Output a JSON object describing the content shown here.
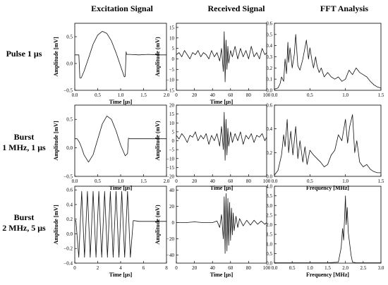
{
  "column_titles": [
    "Excitation Signal",
    "Received Signal",
    "FFT Analysis"
  ],
  "row_labels": [
    [
      "Pulse 1 μs"
    ],
    [
      "Burst",
      "1 MHz, 1 μs"
    ],
    [
      "Burst",
      "2 MHz, 5 μs"
    ]
  ],
  "chart_data": [
    {
      "type": "line",
      "row": 0,
      "col": 0,
      "xlabel": "Time [μs]",
      "ylabel": "Amplitude [mV]",
      "xlim": [
        0,
        2.0
      ],
      "ylim": [
        -0.5,
        0.75
      ],
      "xticks": [
        0,
        0.5,
        1.0,
        1.5,
        2.0
      ],
      "xtick_labels": [
        "0.0",
        "0.5",
        "1.0",
        "1.5",
        "2.0"
      ],
      "yticks": [
        -0.5,
        0.0,
        0.5
      ],
      "ytick_labels": [
        "−0.5",
        "0.0",
        "0.5"
      ],
      "series": [
        {
          "x": [
            0,
            0.09,
            0.1,
            0.11,
            0.14,
            0.2,
            0.3,
            0.4,
            0.5,
            0.6,
            0.7,
            0.8,
            0.9,
            1.0,
            1.08,
            1.1,
            1.12,
            1.13,
            1.2,
            1.4,
            1.6,
            1.8,
            2.0
          ],
          "y": [
            0.16,
            0.16,
            -0.05,
            -0.27,
            -0.27,
            -0.15,
            0.1,
            0.36,
            0.53,
            0.6,
            0.56,
            0.42,
            0.2,
            -0.05,
            -0.25,
            -0.24,
            0.22,
            0.17,
            0.17,
            0.16,
            0.17,
            0.16,
            0.16
          ]
        }
      ]
    },
    {
      "type": "line",
      "row": 0,
      "col": 1,
      "xlabel": "Time [μs]",
      "ylabel": "Amplitude (mV)",
      "xlim": [
        0,
        100
      ],
      "ylim": [
        -15,
        17
      ],
      "xticks": [
        0,
        20,
        40,
        60,
        80,
        100
      ],
      "xtick_labels": [
        "0",
        "20",
        "40",
        "60",
        "80",
        "100"
      ],
      "yticks": [
        -15,
        -10,
        -5,
        0,
        5,
        10,
        15
      ],
      "ytick_labels": [
        "−15",
        "−10",
        "−5",
        "0",
        "5",
        "10",
        "15"
      ],
      "series": [
        {
          "x": [
            0,
            3,
            6,
            9,
            12,
            15,
            18,
            21,
            24,
            27,
            30,
            33,
            36,
            39,
            42,
            45,
            48,
            50,
            52,
            53,
            54,
            55,
            56,
            57,
            58,
            60,
            62,
            65,
            68,
            71,
            74,
            77,
            80,
            83,
            86,
            89,
            92,
            95,
            98,
            100
          ],
          "y": [
            2,
            3,
            1,
            4,
            2,
            0,
            3,
            2,
            4,
            1,
            3,
            2,
            0,
            4,
            1,
            3,
            -1,
            5,
            -6,
            13,
            -11,
            9,
            -5,
            6,
            -2,
            4,
            1,
            6,
            0,
            5,
            1,
            4,
            0,
            6,
            1,
            3,
            0,
            5,
            2,
            3
          ]
        }
      ]
    },
    {
      "type": "line",
      "row": 0,
      "col": 2,
      "xlabel": "",
      "ylabel": "",
      "xlim": [
        0,
        1.5
      ],
      "ylim": [
        0,
        0.6
      ],
      "xticks": [
        0,
        0.5,
        1.0,
        1.5
      ],
      "xtick_labels": [
        "0.0",
        "0.5",
        "1.0",
        "1.5"
      ],
      "yticks": [
        0,
        0.1,
        0.2,
        0.3,
        0.4,
        0.5,
        0.6
      ],
      "ytick_labels": [
        "0.0",
        "0.1",
        "0.2",
        "0.3",
        "0.4",
        "0.5",
        "0.6"
      ],
      "series": [
        {
          "x": [
            0,
            0.05,
            0.08,
            0.1,
            0.13,
            0.15,
            0.17,
            0.19,
            0.2,
            0.22,
            0.25,
            0.28,
            0.3,
            0.33,
            0.36,
            0.4,
            0.45,
            0.48,
            0.5,
            0.53,
            0.55,
            0.58,
            0.6,
            0.63,
            0.66,
            0.7,
            0.75,
            0.8,
            0.85,
            0.9,
            0.95,
            1.0,
            1.05,
            1.1,
            1.15,
            1.2,
            1.25,
            1.3,
            1.35,
            1.4,
            1.45,
            1.5
          ],
          "y": [
            0.01,
            0.02,
            0.06,
            0.12,
            0.08,
            0.28,
            0.15,
            0.43,
            0.25,
            0.38,
            0.2,
            0.32,
            0.5,
            0.22,
            0.18,
            0.28,
            0.45,
            0.28,
            0.38,
            0.26,
            0.2,
            0.3,
            0.22,
            0.16,
            0.2,
            0.12,
            0.16,
            0.12,
            0.1,
            0.12,
            0.08,
            0.1,
            0.18,
            0.14,
            0.2,
            0.16,
            0.14,
            0.12,
            0.08,
            0.05,
            0.03,
            0.02
          ]
        }
      ]
    },
    {
      "type": "line",
      "row": 1,
      "col": 0,
      "xlabel": "Time [μs]",
      "ylabel": "Amplitude [mV]",
      "xlim": [
        0,
        2.0
      ],
      "ylim": [
        -0.5,
        0.75
      ],
      "xticks": [
        0,
        0.5,
        1.0,
        1.5,
        2.0
      ],
      "xtick_labels": [
        "0.0",
        "0.5",
        "1.0",
        "1.5",
        "2.0"
      ],
      "yticks": [
        -0.5,
        0.0,
        0.5
      ],
      "ytick_labels": [
        "−0.5",
        "0.0",
        "0.5"
      ],
      "series": [
        {
          "x": [
            0,
            0.05,
            0.1,
            0.15,
            0.2,
            0.3,
            0.4,
            0.5,
            0.6,
            0.7,
            0.8,
            0.9,
            1.0,
            1.1,
            1.15,
            1.17,
            1.2,
            1.4,
            1.6,
            1.8,
            2.0
          ],
          "y": [
            0.16,
            0.16,
            0.1,
            0.0,
            -0.12,
            -0.25,
            -0.12,
            0.15,
            0.42,
            0.56,
            0.5,
            0.3,
            0.05,
            -0.14,
            -0.1,
            0.17,
            0.16,
            0.16,
            0.16,
            0.16,
            0.16
          ]
        }
      ]
    },
    {
      "type": "line",
      "row": 1,
      "col": 1,
      "xlabel": "Time [μs]",
      "ylabel": "Amplitude (mV)",
      "xlim": [
        0,
        100
      ],
      "ylim": [
        -20,
        20
      ],
      "xticks": [
        0,
        20,
        40,
        60,
        80,
        100
      ],
      "xtick_labels": [
        "0",
        "20",
        "40",
        "60",
        "80",
        "100"
      ],
      "yticks": [
        -20,
        -15,
        -10,
        -5,
        0,
        5,
        10,
        15,
        20
      ],
      "ytick_labels": [
        "−20",
        "−15",
        "−10",
        "−5",
        "0",
        "5",
        "10",
        "15",
        "20"
      ],
      "series": [
        {
          "x": [
            0,
            3,
            6,
            9,
            12,
            15,
            18,
            21,
            24,
            27,
            30,
            33,
            36,
            39,
            42,
            45,
            48,
            50,
            52,
            53,
            54,
            55,
            56,
            57,
            58,
            60,
            62,
            65,
            68,
            71,
            74,
            77,
            80,
            83,
            86,
            89,
            92,
            95,
            98,
            100
          ],
          "y": [
            3,
            1,
            4,
            2,
            -1,
            3,
            2,
            5,
            0,
            3,
            1,
            4,
            -2,
            3,
            0,
            4,
            -3,
            8,
            -5,
            16,
            -11,
            12,
            -8,
            7,
            -3,
            5,
            -1,
            4,
            0,
            5,
            -2,
            3,
            1,
            4,
            -1,
            3,
            2,
            4,
            0,
            2
          ]
        }
      ]
    },
    {
      "type": "line",
      "row": 1,
      "col": 2,
      "xlabel": "Frequency [MHz]",
      "ylabel": "",
      "xlim": [
        0,
        1.5
      ],
      "ylim": [
        0,
        0.6
      ],
      "xticks": [
        0,
        0.5,
        1.0,
        1.5
      ],
      "xtick_labels": [
        "0.0",
        "0.5",
        "1.0",
        "1.5"
      ],
      "yticks": [
        0,
        0.2,
        0.4,
        0.6
      ],
      "ytick_labels": [
        "0.0",
        "0.2",
        "0.4",
        "0.6"
      ],
      "series": [
        {
          "x": [
            0,
            0.05,
            0.1,
            0.13,
            0.15,
            0.18,
            0.2,
            0.23,
            0.26,
            0.3,
            0.33,
            0.36,
            0.4,
            0.43,
            0.46,
            0.5,
            0.55,
            0.6,
            0.65,
            0.7,
            0.75,
            0.8,
            0.85,
            0.9,
            0.95,
            1.0,
            1.03,
            1.06,
            1.1,
            1.13,
            1.16,
            1.2,
            1.25,
            1.3,
            1.35,
            1.4,
            1.45,
            1.5
          ],
          "y": [
            0.01,
            0.05,
            0.18,
            0.35,
            0.25,
            0.48,
            0.2,
            0.38,
            0.18,
            0.42,
            0.15,
            0.3,
            0.12,
            0.25,
            0.1,
            0.22,
            0.18,
            0.15,
            0.12,
            0.08,
            0.1,
            0.18,
            0.22,
            0.35,
            0.3,
            0.48,
            0.28,
            0.42,
            0.52,
            0.2,
            0.3,
            0.12,
            0.08,
            0.1,
            0.06,
            0.04,
            0.03,
            0.03
          ]
        }
      ]
    },
    {
      "type": "line",
      "row": 2,
      "col": 0,
      "xlabel": "Time [μs]",
      "ylabel": "Amplitude [mV]",
      "xlim": [
        0,
        8
      ],
      "ylim": [
        -0.4,
        0.65
      ],
      "xticks": [
        0,
        2,
        4,
        6,
        8
      ],
      "xtick_labels": [
        "0",
        "2",
        "4",
        "6",
        "8"
      ],
      "yticks": [
        -0.4,
        -0.2,
        0,
        0.2,
        0.4,
        0.6
      ],
      "ytick_labels": [
        "−0.4",
        "−0.2",
        "0.0",
        "0.2",
        "0.4",
        "0.6"
      ],
      "series": [
        {
          "x": [
            0,
            0.1,
            0.35,
            0.6,
            0.85,
            1.1,
            1.35,
            1.6,
            1.85,
            2.1,
            2.35,
            2.6,
            2.85,
            3.1,
            3.35,
            3.6,
            3.85,
            4.1,
            4.35,
            4.6,
            4.85,
            5.1,
            5.2,
            5.6,
            6,
            7,
            8
          ],
          "y": [
            0.18,
            0.18,
            -0.32,
            0.58,
            -0.32,
            0.58,
            -0.32,
            0.58,
            -0.32,
            0.58,
            -0.32,
            0.58,
            -0.32,
            0.58,
            -0.32,
            0.58,
            -0.32,
            0.58,
            -0.32,
            0.58,
            -0.32,
            0.18,
            0.18,
            0.17,
            0.17,
            0.17,
            0.17
          ]
        }
      ]
    },
    {
      "type": "line",
      "row": 2,
      "col": 1,
      "xlabel": "Time [μs]",
      "ylabel": "Amplitude (mV)",
      "xlim": [
        0,
        100
      ],
      "ylim": [
        -50,
        45
      ],
      "xticks": [
        0,
        20,
        40,
        60,
        80,
        100
      ],
      "xtick_labels": [
        "0",
        "20",
        "40",
        "60",
        "80",
        "100"
      ],
      "yticks": [
        -40,
        -20,
        0,
        20,
        40
      ],
      "ytick_labels": [
        "−40",
        "−20",
        "0",
        "20",
        "40"
      ],
      "series": [
        {
          "x": [
            0,
            10,
            20,
            30,
            40,
            45,
            48,
            50,
            52,
            53,
            54,
            55,
            56,
            57,
            58,
            59,
            60,
            61,
            62,
            63,
            64,
            66,
            68,
            70,
            74,
            78,
            82,
            86,
            90,
            94,
            98,
            100
          ],
          "y": [
            0,
            0,
            1,
            0,
            0,
            2,
            -6,
            10,
            -20,
            32,
            -38,
            36,
            -35,
            30,
            -28,
            25,
            -22,
            18,
            -15,
            12,
            -10,
            8,
            -6,
            5,
            -4,
            3,
            -3,
            3,
            -2,
            2,
            -2,
            0
          ]
        }
      ]
    },
    {
      "type": "line",
      "row": 2,
      "col": 2,
      "xlabel": "Frequency [MHz]",
      "ylabel": "",
      "xlim": [
        0,
        3.0
      ],
      "ylim": [
        0,
        4.0
      ],
      "xticks": [
        0,
        0.5,
        1.0,
        1.5,
        2.0,
        2.5,
        3.0
      ],
      "xtick_labels": [
        "0.0",
        "0.5",
        "1.0",
        "1.5",
        "2.0",
        "2.5",
        "3.0"
      ],
      "yticks": [
        0,
        0.5,
        1.0,
        1.5,
        2.0,
        2.5,
        3.0,
        3.5,
        4.0
      ],
      "ytick_labels": [
        "0.0",
        "0.5",
        "1.0",
        "1.5",
        "2.0",
        "2.5",
        "3.0",
        "3.5",
        "4.0"
      ],
      "series": [
        {
          "x": [
            0,
            0.5,
            1.0,
            1.5,
            1.8,
            1.88,
            1.92,
            1.95,
            1.98,
            2.0,
            2.02,
            2.05,
            2.08,
            2.12,
            2.16,
            2.2,
            2.3,
            2.5,
            3.0
          ],
          "y": [
            0.02,
            0.02,
            0.02,
            0.02,
            0.05,
            0.8,
            1.8,
            1.2,
            2.6,
            3.5,
            2.0,
            2.9,
            1.6,
            1.0,
            0.4,
            0.05,
            0.02,
            0.02,
            0.02
          ]
        }
      ]
    }
  ]
}
